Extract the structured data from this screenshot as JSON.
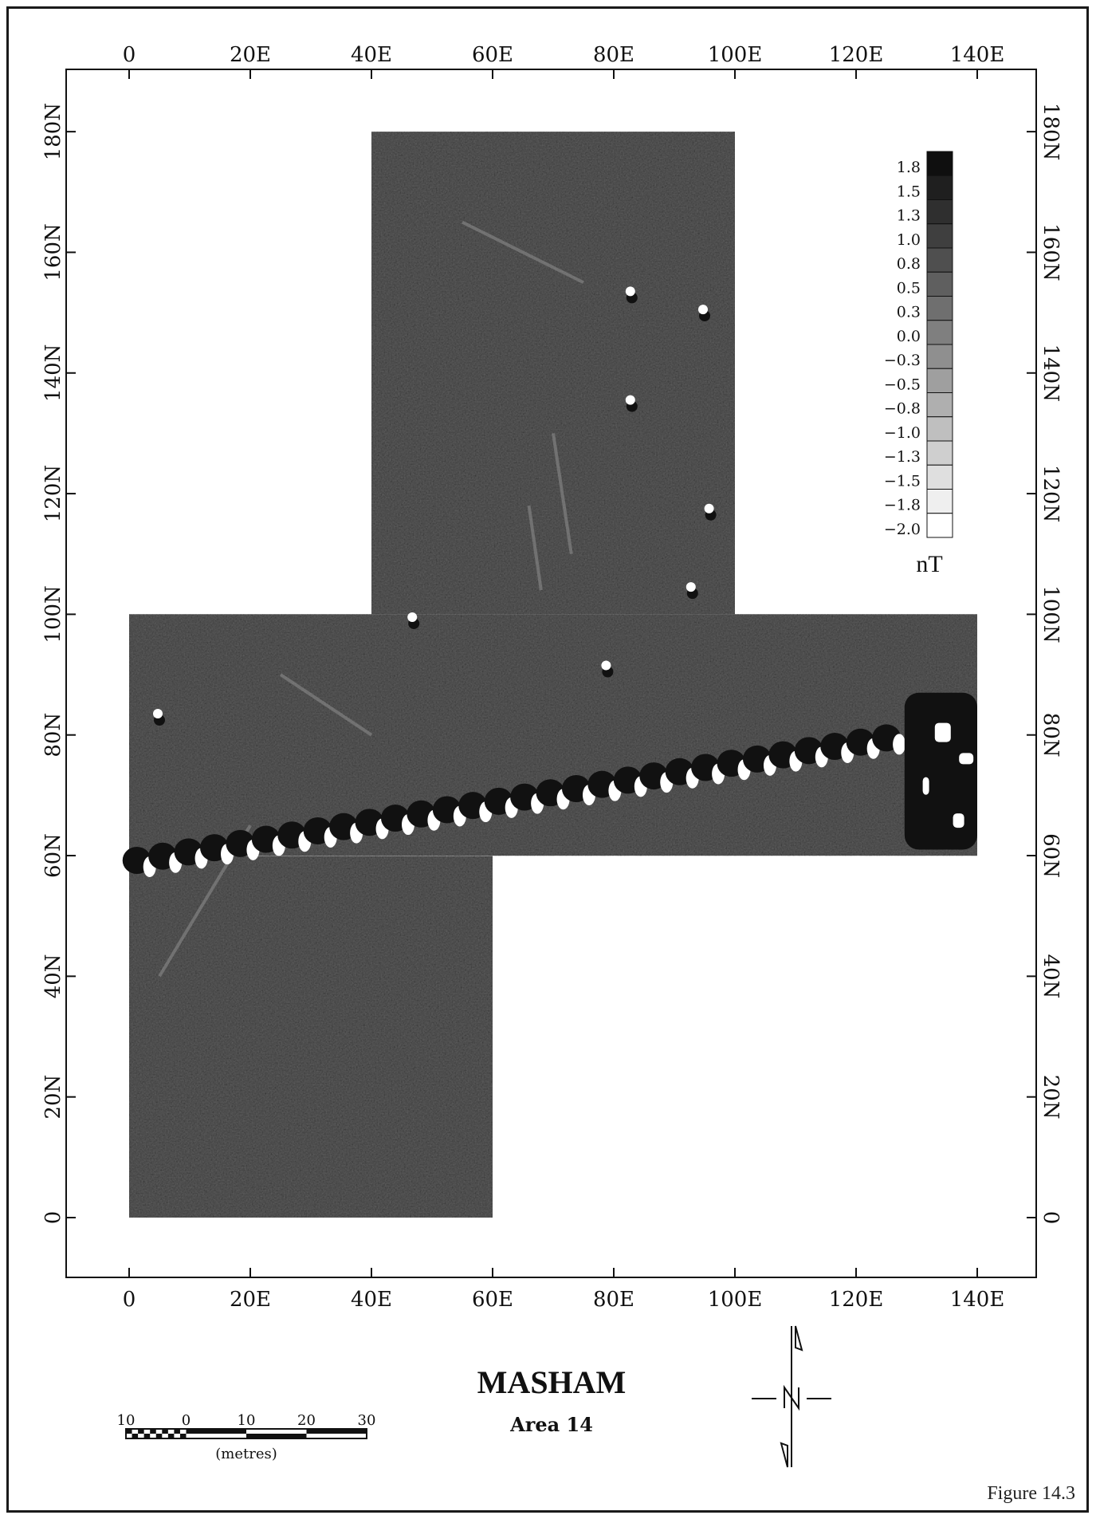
{
  "figure": {
    "title": "MASHAM",
    "subtitle": "Area 14",
    "caption": "Figure 14.3"
  },
  "axes": {
    "x_ticks_top": [
      "0",
      "20E",
      "40E",
      "60E",
      "80E",
      "100E",
      "120E",
      "140E"
    ],
    "x_ticks_bottom": [
      "0",
      "20E",
      "40E",
      "60E",
      "80E",
      "100E",
      "120E",
      "140E"
    ],
    "x_values": [
      0,
      20,
      40,
      60,
      80,
      100,
      120,
      140
    ],
    "y_ticks_left": [
      "0",
      "20N",
      "40N",
      "60N",
      "80N",
      "100N",
      "120N",
      "140N",
      "160N",
      "180N"
    ],
    "y_ticks_right": [
      "0",
      "20N",
      "40N",
      "60N",
      "80N",
      "100N",
      "120N",
      "140N",
      "160N",
      "180N"
    ],
    "y_values": [
      0,
      20,
      40,
      60,
      80,
      100,
      120,
      140,
      160,
      180
    ],
    "x_range": [
      -10,
      150
    ],
    "y_range": [
      -10,
      190
    ]
  },
  "survey_area": {
    "blocks": [
      {
        "x0": 0,
        "x1": 60,
        "y0": 0,
        "y1": 60
      },
      {
        "x0": 0,
        "x1": 140,
        "y0": 60,
        "y1": 100
      },
      {
        "x0": 40,
        "x1": 100,
        "y0": 100,
        "y1": 180
      }
    ],
    "fill_color": "#6d6d6d"
  },
  "anomaly_band": {
    "from": [
      0,
      59
    ],
    "to": [
      128,
      80
    ],
    "strong_block": {
      "x0": 128,
      "x1": 140,
      "y0": 61,
      "y1": 87
    }
  },
  "legend": {
    "values": [
      "1.8",
      "1.5",
      "1.3",
      "1.0",
      "0.8",
      "0.5",
      "0.3",
      "0.0",
      "−0.3",
      "−0.5",
      "−0.8",
      "−1.0",
      "−1.3",
      "−1.5",
      "−1.8",
      "−2.0"
    ],
    "unit": "nT"
  },
  "scale_bar": {
    "labels": [
      "10",
      "0",
      "10",
      "20",
      "30"
    ],
    "unit_label": "(metres)"
  }
}
